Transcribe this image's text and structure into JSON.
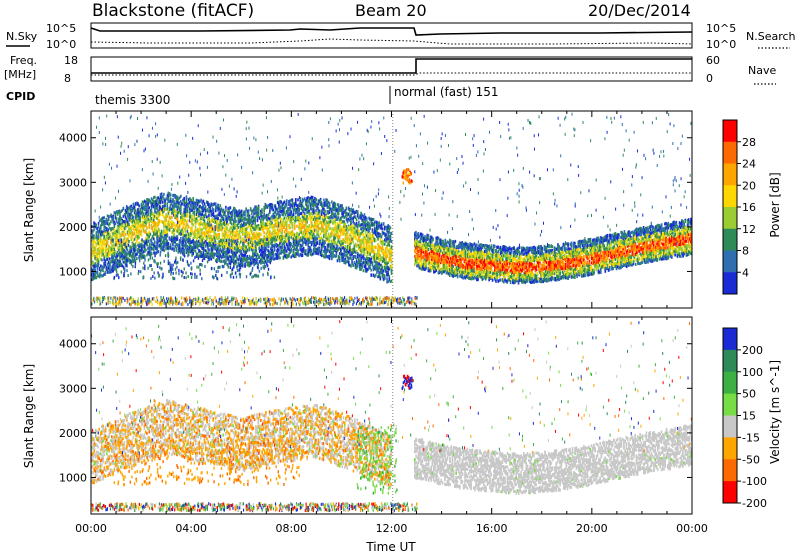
{
  "header": {
    "site": "Blackstone (fitACF)",
    "beam": "Beam 20",
    "date": "20/Dec/2014"
  },
  "summary_panels": {
    "nsky_label": "N.Sky",
    "nsearch_label": "N.Search",
    "noise_ticks": [
      "10^5",
      "10^0"
    ],
    "freq_label": "Freq.",
    "freq_unit": "[MHz]",
    "freq_ticks": [
      "18",
      "8"
    ],
    "nave_label": "Nave",
    "nave_ticks": [
      "60",
      "0"
    ],
    "cpid_label": "CPID",
    "cpid_modes": [
      "themis 3300",
      "normal (fast) 151"
    ]
  },
  "chart_data": [
    {
      "type": "heatmap",
      "name": "power-panel",
      "ylabel": "Slant Range [km]",
      "yticks": [
        1000,
        2000,
        3000,
        4000
      ],
      "ylim": [
        180,
        4600
      ],
      "xlim": [
        "00:00",
        "24:00"
      ],
      "colorbar_label": "Power [dB]",
      "colorbar_ticks": [
        28,
        24,
        20,
        16,
        12,
        8,
        4
      ],
      "colorbar_colors": [
        "#ff0000",
        "#ff6a00",
        "#ffa500",
        "#ffd700",
        "#9acd32",
        "#2e8b57",
        "#2f6fb0",
        "#1a2bd6"
      ],
      "bands": [
        {
          "t": [
            0.0,
            1.5,
            3.0,
            4.5,
            6.0,
            7.5,
            9.0,
            10.5,
            12.0
          ],
          "r": [
            1400,
            1800,
            2100,
            1900,
            1700,
            1900,
            2000,
            1700,
            1300
          ],
          "level": "strong"
        },
        {
          "t": [
            12.9,
            14.0,
            15.0,
            16.0,
            17.0,
            18.0,
            19.0,
            20.0,
            21.0,
            22.0,
            23.0,
            24.0
          ],
          "r": [
            1400,
            1250,
            1150,
            1100,
            1050,
            1080,
            1150,
            1250,
            1380,
            1500,
            1600,
            1700
          ],
          "level": "strong"
        }
      ]
    },
    {
      "type": "heatmap",
      "name": "velocity-panel",
      "ylabel": "Slant Range [km]",
      "yticks": [
        1000,
        2000,
        3000,
        4000
      ],
      "ylim": [
        180,
        4600
      ],
      "xlabel": "Time UT",
      "xticks": [
        "00:00",
        "04:00",
        "08:00",
        "12:00",
        "16:00",
        "20:00",
        "00:00"
      ],
      "colorbar_label": "Velocity [m s^-1]",
      "colorbar_ticks": [
        200,
        100,
        50,
        15,
        -15,
        -50,
        -100,
        -200
      ],
      "colorbar_colors": [
        "#1a2bd6",
        "#2e8b57",
        "#3cb043",
        "#77dd44",
        "#c8c8c8",
        "#ffa500",
        "#ff6a00",
        "#ff0000"
      ]
    }
  ]
}
